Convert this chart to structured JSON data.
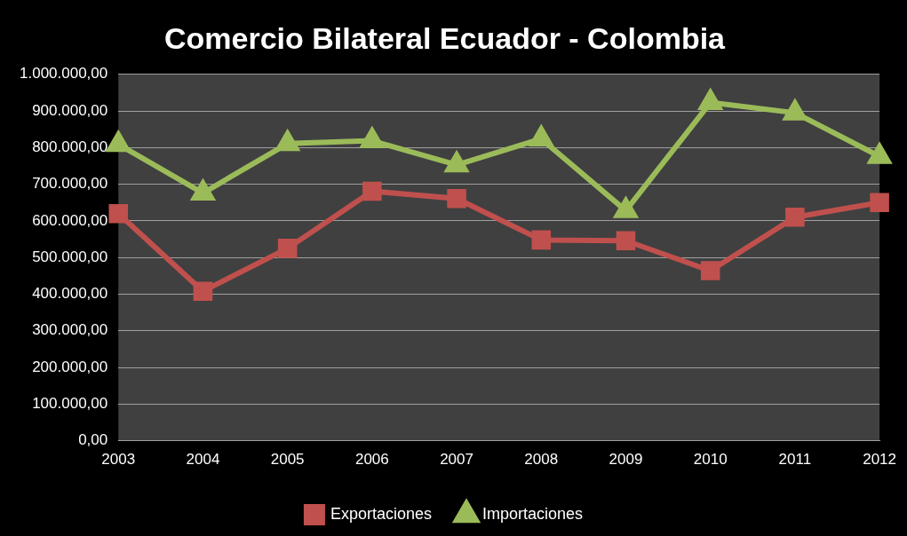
{
  "chart_data": {
    "type": "line",
    "title": "Comercio Bilateral Ecuador - Colombia",
    "categories": [
      "2003",
      "2004",
      "2005",
      "2006",
      "2007",
      "2008",
      "2009",
      "2010",
      "2011",
      "2012"
    ],
    "series": [
      {
        "name": "Exportaciones",
        "color": "#c0504d",
        "marker": "square",
        "values": [
          620000,
          408000,
          525000,
          681000,
          661000,
          548000,
          546000,
          464000,
          610000,
          650000
        ]
      },
      {
        "name": "Importaciones",
        "color": "#9bbb59",
        "marker": "triangle",
        "values": [
          809000,
          676000,
          811000,
          819000,
          753000,
          824000,
          628000,
          923000,
          895000,
          776000
        ]
      }
    ],
    "ylim": [
      0,
      1000000
    ],
    "yticks": [
      {
        "value": 0,
        "label": "0,00"
      },
      {
        "value": 100000,
        "label": "100.000,00"
      },
      {
        "value": 200000,
        "label": "200.000,00"
      },
      {
        "value": 300000,
        "label": "300.000,00"
      },
      {
        "value": 400000,
        "label": "400.000,00"
      },
      {
        "value": 500000,
        "label": "500.000,00"
      },
      {
        "value": 600000,
        "label": "600.000,00"
      },
      {
        "value": 700000,
        "label": "700.000,00"
      },
      {
        "value": 800000,
        "label": "800.000,00"
      },
      {
        "value": 900000,
        "label": "900.000,00"
      },
      {
        "value": 1000000,
        "label": "1.000.000,00"
      }
    ],
    "grid": "y",
    "legend": "bottom",
    "line_style": "solid"
  }
}
